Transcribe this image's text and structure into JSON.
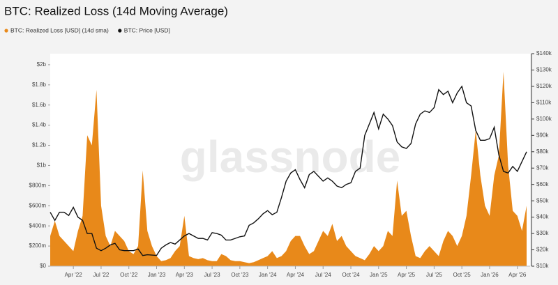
{
  "chart_data": {
    "type": "area_line",
    "title": "BTC: Realized Loss (14d Moving Average)",
    "watermark": "glassnode",
    "categories": [
      null,
      null,
      null,
      null,
      null,
      "Apr '22",
      null,
      null,
      null,
      null,
      null,
      "Jul '22",
      null,
      null,
      null,
      null,
      null,
      "Oct '22",
      null,
      null,
      null,
      null,
      null,
      "Jan '23",
      null,
      null,
      null,
      null,
      null,
      "Apr '23",
      null,
      null,
      null,
      null,
      null,
      "Jul '23",
      null,
      null,
      null,
      null,
      null,
      "Oct '23",
      null,
      null,
      null,
      null,
      null,
      "Jan '24",
      null,
      null,
      null,
      null,
      null,
      "Apr '24",
      null,
      null,
      null,
      null,
      null,
      "Jul '24",
      null,
      null,
      null,
      null,
      null,
      "Oct '24",
      null,
      null,
      null,
      null,
      null,
      "Jan '25",
      null,
      null,
      null,
      null,
      null,
      "Apr '25",
      null,
      null,
      null,
      null,
      null,
      "Jul '25",
      null,
      null,
      null,
      null,
      null,
      "Oct '25",
      null,
      null,
      null,
      null,
      null,
      "Jan '26",
      null,
      null,
      null,
      null,
      null,
      "Apr '26",
      null,
      null
    ],
    "series": [
      {
        "name": "BTC: Realized Loss [USD] (14d sma)",
        "color": "#e8891a",
        "kind": "area",
        "values": [
          300000000.0,
          450000000.0,
          300000000.0,
          250000000.0,
          200000000.0,
          150000000.0,
          350000000.0,
          500000000.0,
          1300000000.0,
          1200000000.0,
          1750000000.0,
          600000000.0,
          300000000.0,
          200000000.0,
          350000000.0,
          300000000.0,
          250000000.0,
          150000000.0,
          120000000.0,
          200000000.0,
          950000000.0,
          350000000.0,
          200000000.0,
          100000000.0,
          50000000.0,
          60000000.0,
          80000000.0,
          150000000.0,
          200000000.0,
          500000000.0,
          100000000.0,
          80000000.0,
          70000000.0,
          80000000.0,
          60000000.0,
          50000000.0,
          50000000.0,
          120000000.0,
          100000000.0,
          60000000.0,
          50000000.0,
          50000000.0,
          40000000.0,
          30000000.0,
          40000000.0,
          60000000.0,
          80000000.0,
          100000000.0,
          150000000.0,
          80000000.0,
          100000000.0,
          150000000.0,
          250000000.0,
          300000000.0,
          300000000.0,
          200000000.0,
          120000000.0,
          150000000.0,
          250000000.0,
          350000000.0,
          300000000.0,
          420000000.0,
          250000000.0,
          300000000.0,
          200000000.0,
          150000000.0,
          100000000.0,
          80000000.0,
          60000000.0,
          120000000.0,
          200000000.0,
          150000000.0,
          200000000.0,
          350000000.0,
          300000000.0,
          850000000.0,
          500000000.0,
          550000000.0,
          300000000.0,
          100000000.0,
          80000000.0,
          150000000.0,
          200000000.0,
          150000000.0,
          100000000.0,
          250000000.0,
          350000000.0,
          300000000.0,
          200000000.0,
          300000000.0,
          500000000.0,
          900000000.0,
          1350000000.0,
          900000000.0,
          600000000.0,
          500000000.0,
          900000000.0,
          1100000000.0,
          1930000000.0,
          1000000000.0,
          550000000.0,
          500000000.0,
          350000000.0,
          600000000.0
        ]
      },
      {
        "name": "BTC: Price [USD]",
        "color": "#111111",
        "kind": "line",
        "axis": "y2",
        "values": [
          43000,
          38000,
          43000,
          43000,
          41000,
          46000,
          40000,
          38000,
          30000,
          30000,
          21000,
          19500,
          21000,
          23000,
          24000,
          20000,
          19500,
          19500,
          19500,
          20500,
          16500,
          17000,
          16800,
          16600,
          21000,
          23000,
          24500,
          23500,
          26000,
          28500,
          30000,
          28500,
          27000,
          27000,
          26000,
          30500,
          30000,
          29000,
          26000,
          26000,
          27000,
          28000,
          28500,
          35000,
          36500,
          39000,
          42000,
          44000,
          41500,
          43000,
          52000,
          62000,
          67000,
          69000,
          63000,
          58000,
          66000,
          68000,
          65000,
          62000,
          64000,
          62000,
          59000,
          58000,
          60000,
          61000,
          68000,
          70000,
          90000,
          97000,
          104000,
          94000,
          103000,
          100000,
          96000,
          86000,
          83000,
          82000,
          85000,
          97000,
          103000,
          105000,
          104000,
          107000,
          118000,
          115000,
          117000,
          110000,
          116000,
          120000,
          110000,
          108000,
          93000,
          87000,
          87000,
          88000,
          95000,
          78000,
          68000,
          67000,
          71000,
          68000,
          74000,
          80000
        ]
      }
    ],
    "ylim": [
      0,
      2110000000.0
    ],
    "yticks": [
      {
        "value": 0,
        "label": "$0"
      },
      {
        "value": 200000000.0,
        "label": "$200m"
      },
      {
        "value": 400000000.0,
        "label": "$400m"
      },
      {
        "value": 600000000.0,
        "label": "$600m"
      },
      {
        "value": 800000000.0,
        "label": "$800m"
      },
      {
        "value": 1000000000.0,
        "label": "$1b"
      },
      {
        "value": 1200000000.0,
        "label": "$1.2b"
      },
      {
        "value": 1400000000.0,
        "label": "$1.4b"
      },
      {
        "value": 1600000000.0,
        "label": "$1.6b"
      },
      {
        "value": 1800000000.0,
        "label": "$1.8b"
      },
      {
        "value": 2000000000.0,
        "label": "$2b"
      }
    ],
    "y2lim": [
      10000,
      140000
    ],
    "y2ticks": [
      {
        "value": 10000,
        "label": "$10k"
      },
      {
        "value": 20000,
        "label": "$20k"
      },
      {
        "value": 30000,
        "label": "$30k"
      },
      {
        "value": 40000,
        "label": "$40k"
      },
      {
        "value": 50000,
        "label": "$50k"
      },
      {
        "value": 60000,
        "label": "$60k"
      },
      {
        "value": 70000,
        "label": "$70k"
      },
      {
        "value": 80000,
        "label": "$80k"
      },
      {
        "value": 90000,
        "label": "$90k"
      },
      {
        "value": 100000,
        "label": "$100k"
      },
      {
        "value": 110000,
        "label": "$110k"
      },
      {
        "value": 120000,
        "label": "$120k"
      },
      {
        "value": 130000,
        "label": "$130k"
      },
      {
        "value": 140000,
        "label": "$140k"
      }
    ],
    "grid": false
  }
}
